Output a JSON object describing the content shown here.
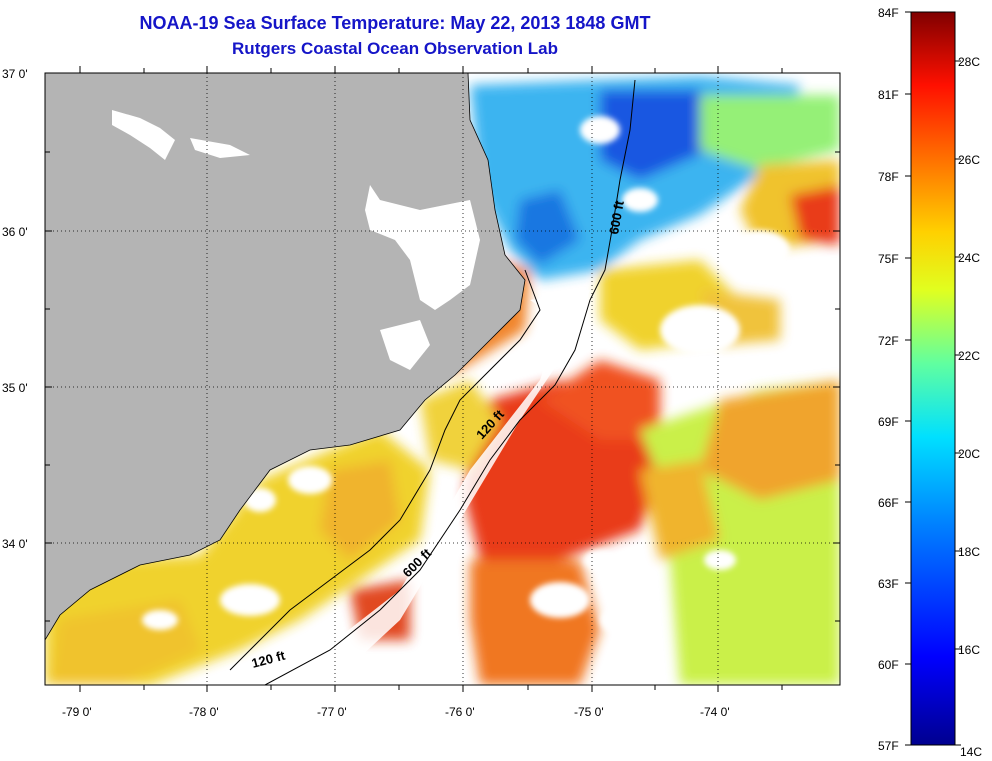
{
  "title": {
    "line1": "NOAA-19 Sea Surface Temperature:  May 22, 2013 1848 GMT",
    "line2": "Rutgers Coastal Ocean Observation Lab"
  },
  "axes": {
    "lat_labels": [
      "37 0'",
      "36 0'",
      "35 0'",
      "34 0'"
    ],
    "lon_labels": [
      "-79 0'",
      "-78 0'",
      "-77 0'",
      "-76 0'",
      "-75 0'",
      "-74 0'"
    ]
  },
  "isobaths": [
    {
      "label": "600 ft"
    },
    {
      "label": "120 ft"
    },
    {
      "label": "600 ft"
    },
    {
      "label": "120 ft"
    }
  ],
  "colorbar": {
    "fahrenheit": [
      "84F",
      "81F",
      "78F",
      "75F",
      "72F",
      "69F",
      "66F",
      "63F",
      "60F",
      "57F"
    ],
    "celsius": [
      "28C",
      "26C",
      "24C",
      "22C",
      "20C",
      "18C",
      "16C",
      "14C"
    ],
    "min_F": 57,
    "max_F": 84,
    "min_C": 14,
    "max_C": 29
  },
  "colors": {
    "land": "#b4b4b4",
    "title": "#1515c8",
    "warm": "#e83010",
    "cold": "#1060e0"
  }
}
